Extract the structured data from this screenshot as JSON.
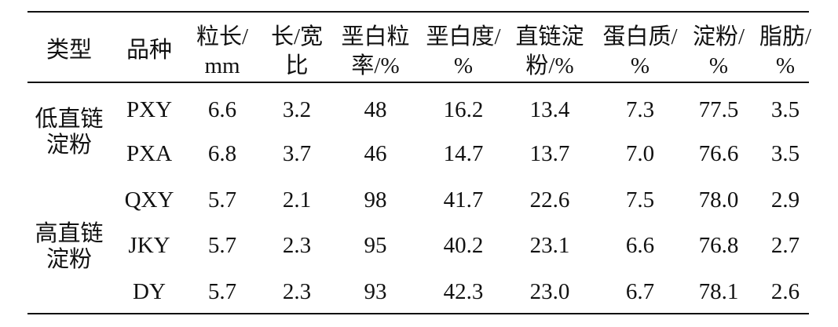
{
  "table": {
    "header": [
      [
        "类型"
      ],
      [
        "品种"
      ],
      [
        "粒长/",
        "mm"
      ],
      [
        "长/宽",
        "比"
      ],
      [
        "垩白粒",
        "率/%"
      ],
      [
        "垩白度/",
        "%"
      ],
      [
        "直链淀",
        "粉/%"
      ],
      [
        "蛋白质/",
        "%"
      ],
      [
        "淀粉/",
        "%"
      ],
      [
        "脂肪/",
        "%"
      ]
    ],
    "groups": [
      {
        "label": [
          "低直链",
          "淀粉"
        ],
        "rows": [
          [
            "PXY",
            "6.6",
            "3.2",
            "48",
            "16.2",
            "13.4",
            "7.3",
            "77.5",
            "3.5"
          ],
          [
            "PXA",
            "6.8",
            "3.7",
            "46",
            "14.7",
            "13.7",
            "7.0",
            "76.6",
            "3.5"
          ]
        ]
      },
      {
        "label": [
          "高直链",
          "淀粉"
        ],
        "rows": [
          [
            "QXY",
            "5.7",
            "2.1",
            "98",
            "41.7",
            "22.6",
            "7.5",
            "78.0",
            "2.9"
          ],
          [
            "JKY",
            "5.7",
            "2.3",
            "95",
            "40.2",
            "23.1",
            "6.6",
            "76.8",
            "2.7"
          ],
          [
            "DY",
            "5.7",
            "2.3",
            "93",
            "42.3",
            "23.0",
            "6.7",
            "78.1",
            "2.6"
          ]
        ]
      }
    ]
  }
}
